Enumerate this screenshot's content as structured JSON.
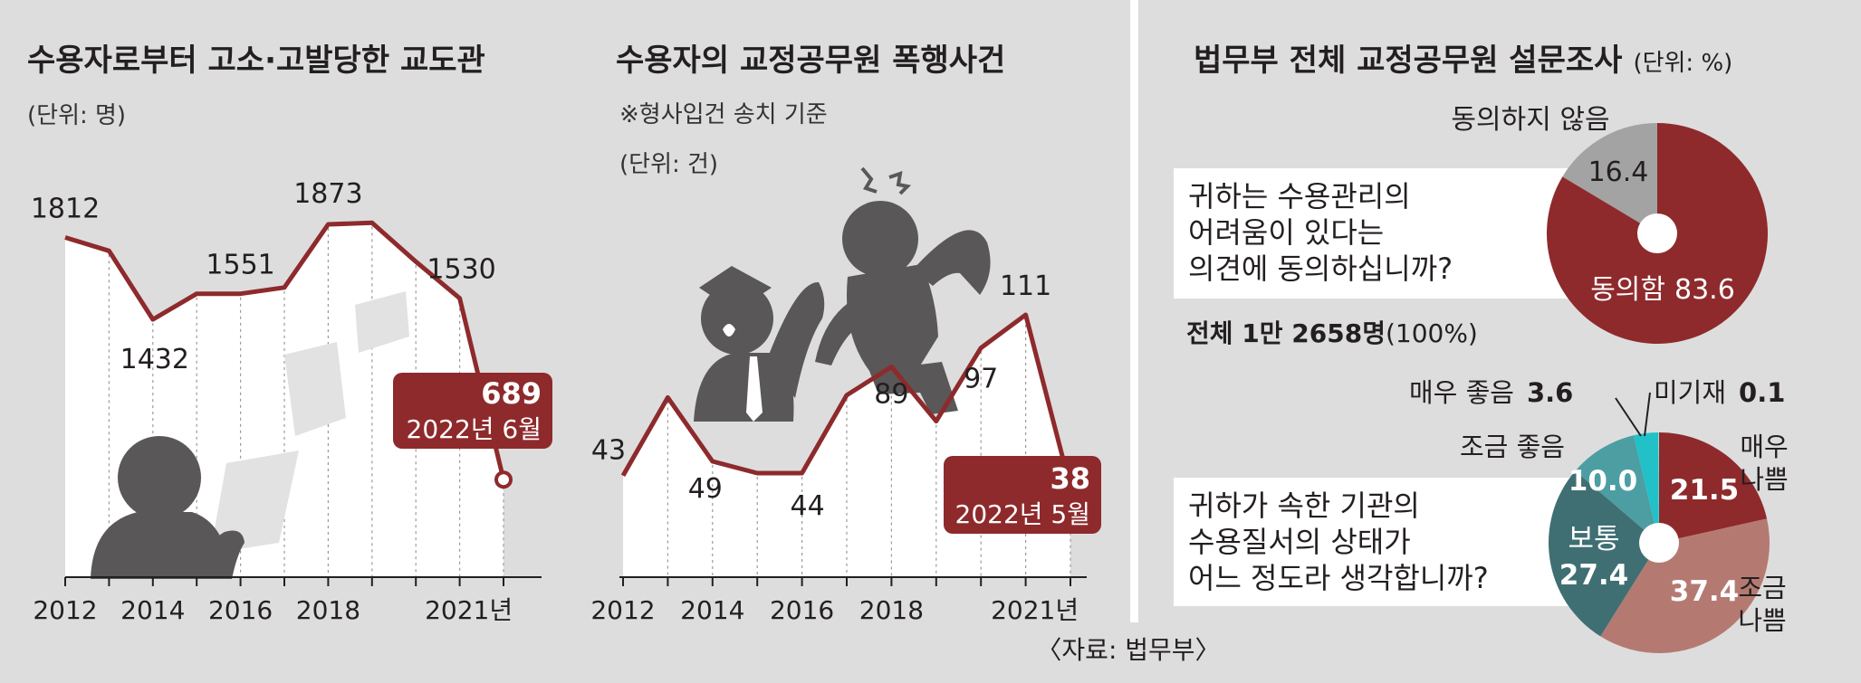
{
  "source": "〈자료: 법무부〉",
  "colors": {
    "maroon": "#8e2a2c",
    "bg": "#dddddd",
    "dark": "#595757",
    "light": "#ededed",
    "teal_dark": "#3f6f73",
    "teal": "#4c9ea3",
    "teal_bright": "#22c1c8",
    "salmon": "#b47a72",
    "gray": "#a3a3a3"
  },
  "icons": [
    "prisoner-reading-silhouette",
    "paper-sheet",
    "guard-silhouette",
    "attacker-silhouette",
    "anger-symbol"
  ],
  "chart_data": [
    {
      "type": "line",
      "title": "수용자로부터 고소·고발당한 교도관",
      "unit": "(단위: 명)",
      "x": [
        2012,
        2013,
        2014,
        2015,
        2016,
        2017,
        2018,
        2019,
        2020,
        2021,
        2022
      ],
      "x_tick_labels": [
        "2012",
        "2014",
        "2016",
        "2018",
        "2021년"
      ],
      "values": [
        1812,
        1750,
        1432,
        1551,
        1551,
        1580,
        1873,
        1880,
        1700,
        1530,
        689
      ],
      "point_labels": [
        "1812",
        "",
        "1432",
        "",
        "1551",
        "",
        "1873",
        "",
        "",
        "1530",
        ""
      ],
      "callout": {
        "value": "689",
        "label": "2022년 6월"
      }
    },
    {
      "type": "line",
      "title": "수용자의 교정공무원 폭행사건",
      "note": "※형사입건 송치 기준",
      "unit": "(단위: 건)",
      "x": [
        2012,
        2013,
        2014,
        2015,
        2016,
        2017,
        2018,
        2019,
        2020,
        2021,
        2022
      ],
      "x_tick_labels": [
        "2012",
        "2014",
        "2016",
        "2018",
        "2021년"
      ],
      "values": [
        43,
        76,
        49,
        44,
        44,
        77,
        89,
        66,
        97,
        111,
        38
      ],
      "point_labels": [
        "43",
        "",
        "49",
        "",
        "44",
        "",
        "89",
        "",
        "97",
        "111",
        ""
      ],
      "callout": {
        "value": "38",
        "label": "2022년 5월"
      }
    },
    {
      "type": "pie",
      "title": "법무부 전체 교정공무원 설문조사",
      "unit": "(단위: %)",
      "question": [
        "귀하는 수용관리의",
        "어려움이 있다는",
        "의견에 동의하십니까?"
      ],
      "total": {
        "main": "전체 1만 2658명",
        "pct": "(100%)"
      },
      "slices": [
        {
          "label": "동의함",
          "value": 83.6
        },
        {
          "label": "동의하지 않음",
          "value": 16.4
        }
      ]
    },
    {
      "type": "pie",
      "question": [
        "귀하가 속한 기관의",
        "수용질서의 상태가",
        "어느 정도라 생각합니까?"
      ],
      "slices": [
        {
          "label": "매우 나쁨",
          "value": 21.5
        },
        {
          "label": "조금 나쁨",
          "value": 37.4
        },
        {
          "label": "보통",
          "value": 27.4
        },
        {
          "label": "조금 좋음",
          "value": 10.0
        },
        {
          "label": "매우 좋음",
          "value": 3.6
        },
        {
          "label": "미기재",
          "value": 0.1
        }
      ]
    }
  ]
}
